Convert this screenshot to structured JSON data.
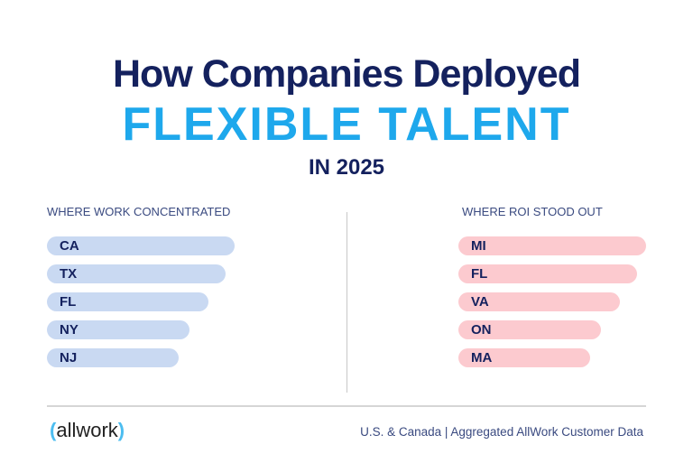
{
  "header": {
    "line1": "How Companies Deployed",
    "line2": "FLEXIBLE TALENT",
    "line3": "IN 2025"
  },
  "chart_data": [
    {
      "type": "bar",
      "orientation": "horizontal",
      "title": "WHERE WORK CONCENTRATED",
      "categories": [
        "CA",
        "TX",
        "FL",
        "NY",
        "NJ"
      ],
      "values": [
        1.0,
        0.95,
        0.86,
        0.76,
        0.7
      ],
      "color": "#c9d9f2"
    },
    {
      "type": "bar",
      "orientation": "horizontal",
      "title": "WHERE ROI STOOD OUT",
      "categories": [
        "MI",
        "FL",
        "VA",
        "ON",
        "MA"
      ],
      "values": [
        1.0,
        0.95,
        0.86,
        0.76,
        0.7
      ],
      "color": "#fccacf"
    }
  ],
  "footer": {
    "logo": "allwork",
    "source": "U.S. & Canada | Aggregated AllWork Customer Data"
  }
}
